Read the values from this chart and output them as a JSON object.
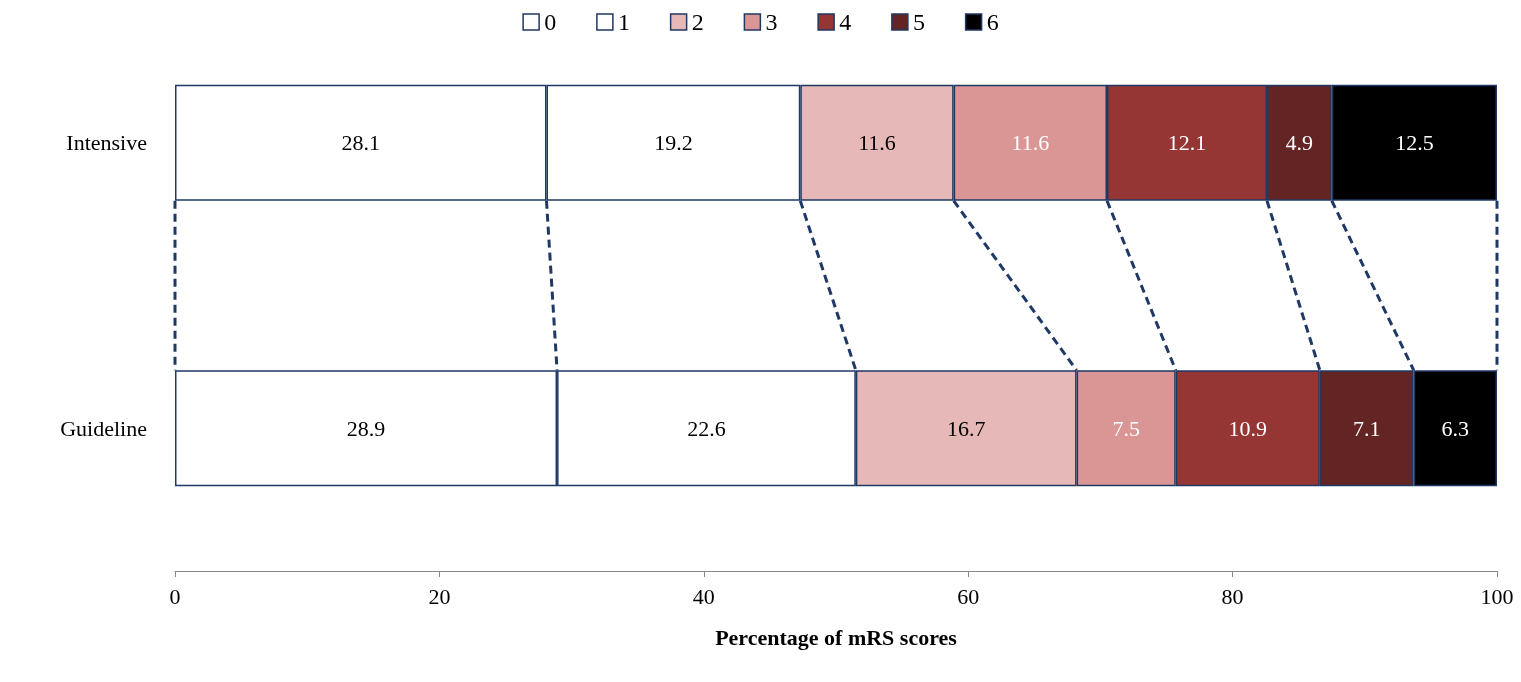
{
  "chart_data": {
    "type": "bar",
    "orientation": "horizontal",
    "stacked": true,
    "categories": [
      "Intensive",
      "Guideline"
    ],
    "series": [
      {
        "name": "0",
        "color": "#ffffff",
        "values": [
          28.1,
          28.9
        ]
      },
      {
        "name": "1",
        "color": "#ffffff",
        "values": [
          19.2,
          22.6
        ]
      },
      {
        "name": "2",
        "color": "#e6b8b7",
        "values": [
          11.6,
          16.7
        ]
      },
      {
        "name": "3",
        "color": "#da9694",
        "values": [
          11.6,
          7.5
        ]
      },
      {
        "name": "4",
        "color": "#963634",
        "values": [
          12.1,
          10.9
        ]
      },
      {
        "name": "5",
        "color": "#632523",
        "values": [
          4.9,
          7.1
        ]
      },
      {
        "name": "6",
        "color": "#000000",
        "values": [
          12.5,
          6.3
        ]
      }
    ],
    "xlabel": "Percentage of mRS scores",
    "xlim": [
      0,
      100
    ],
    "xticks": [
      0,
      20,
      40,
      60,
      80,
      100
    ],
    "grid": false,
    "legend": "top",
    "data_labels": true
  }
}
